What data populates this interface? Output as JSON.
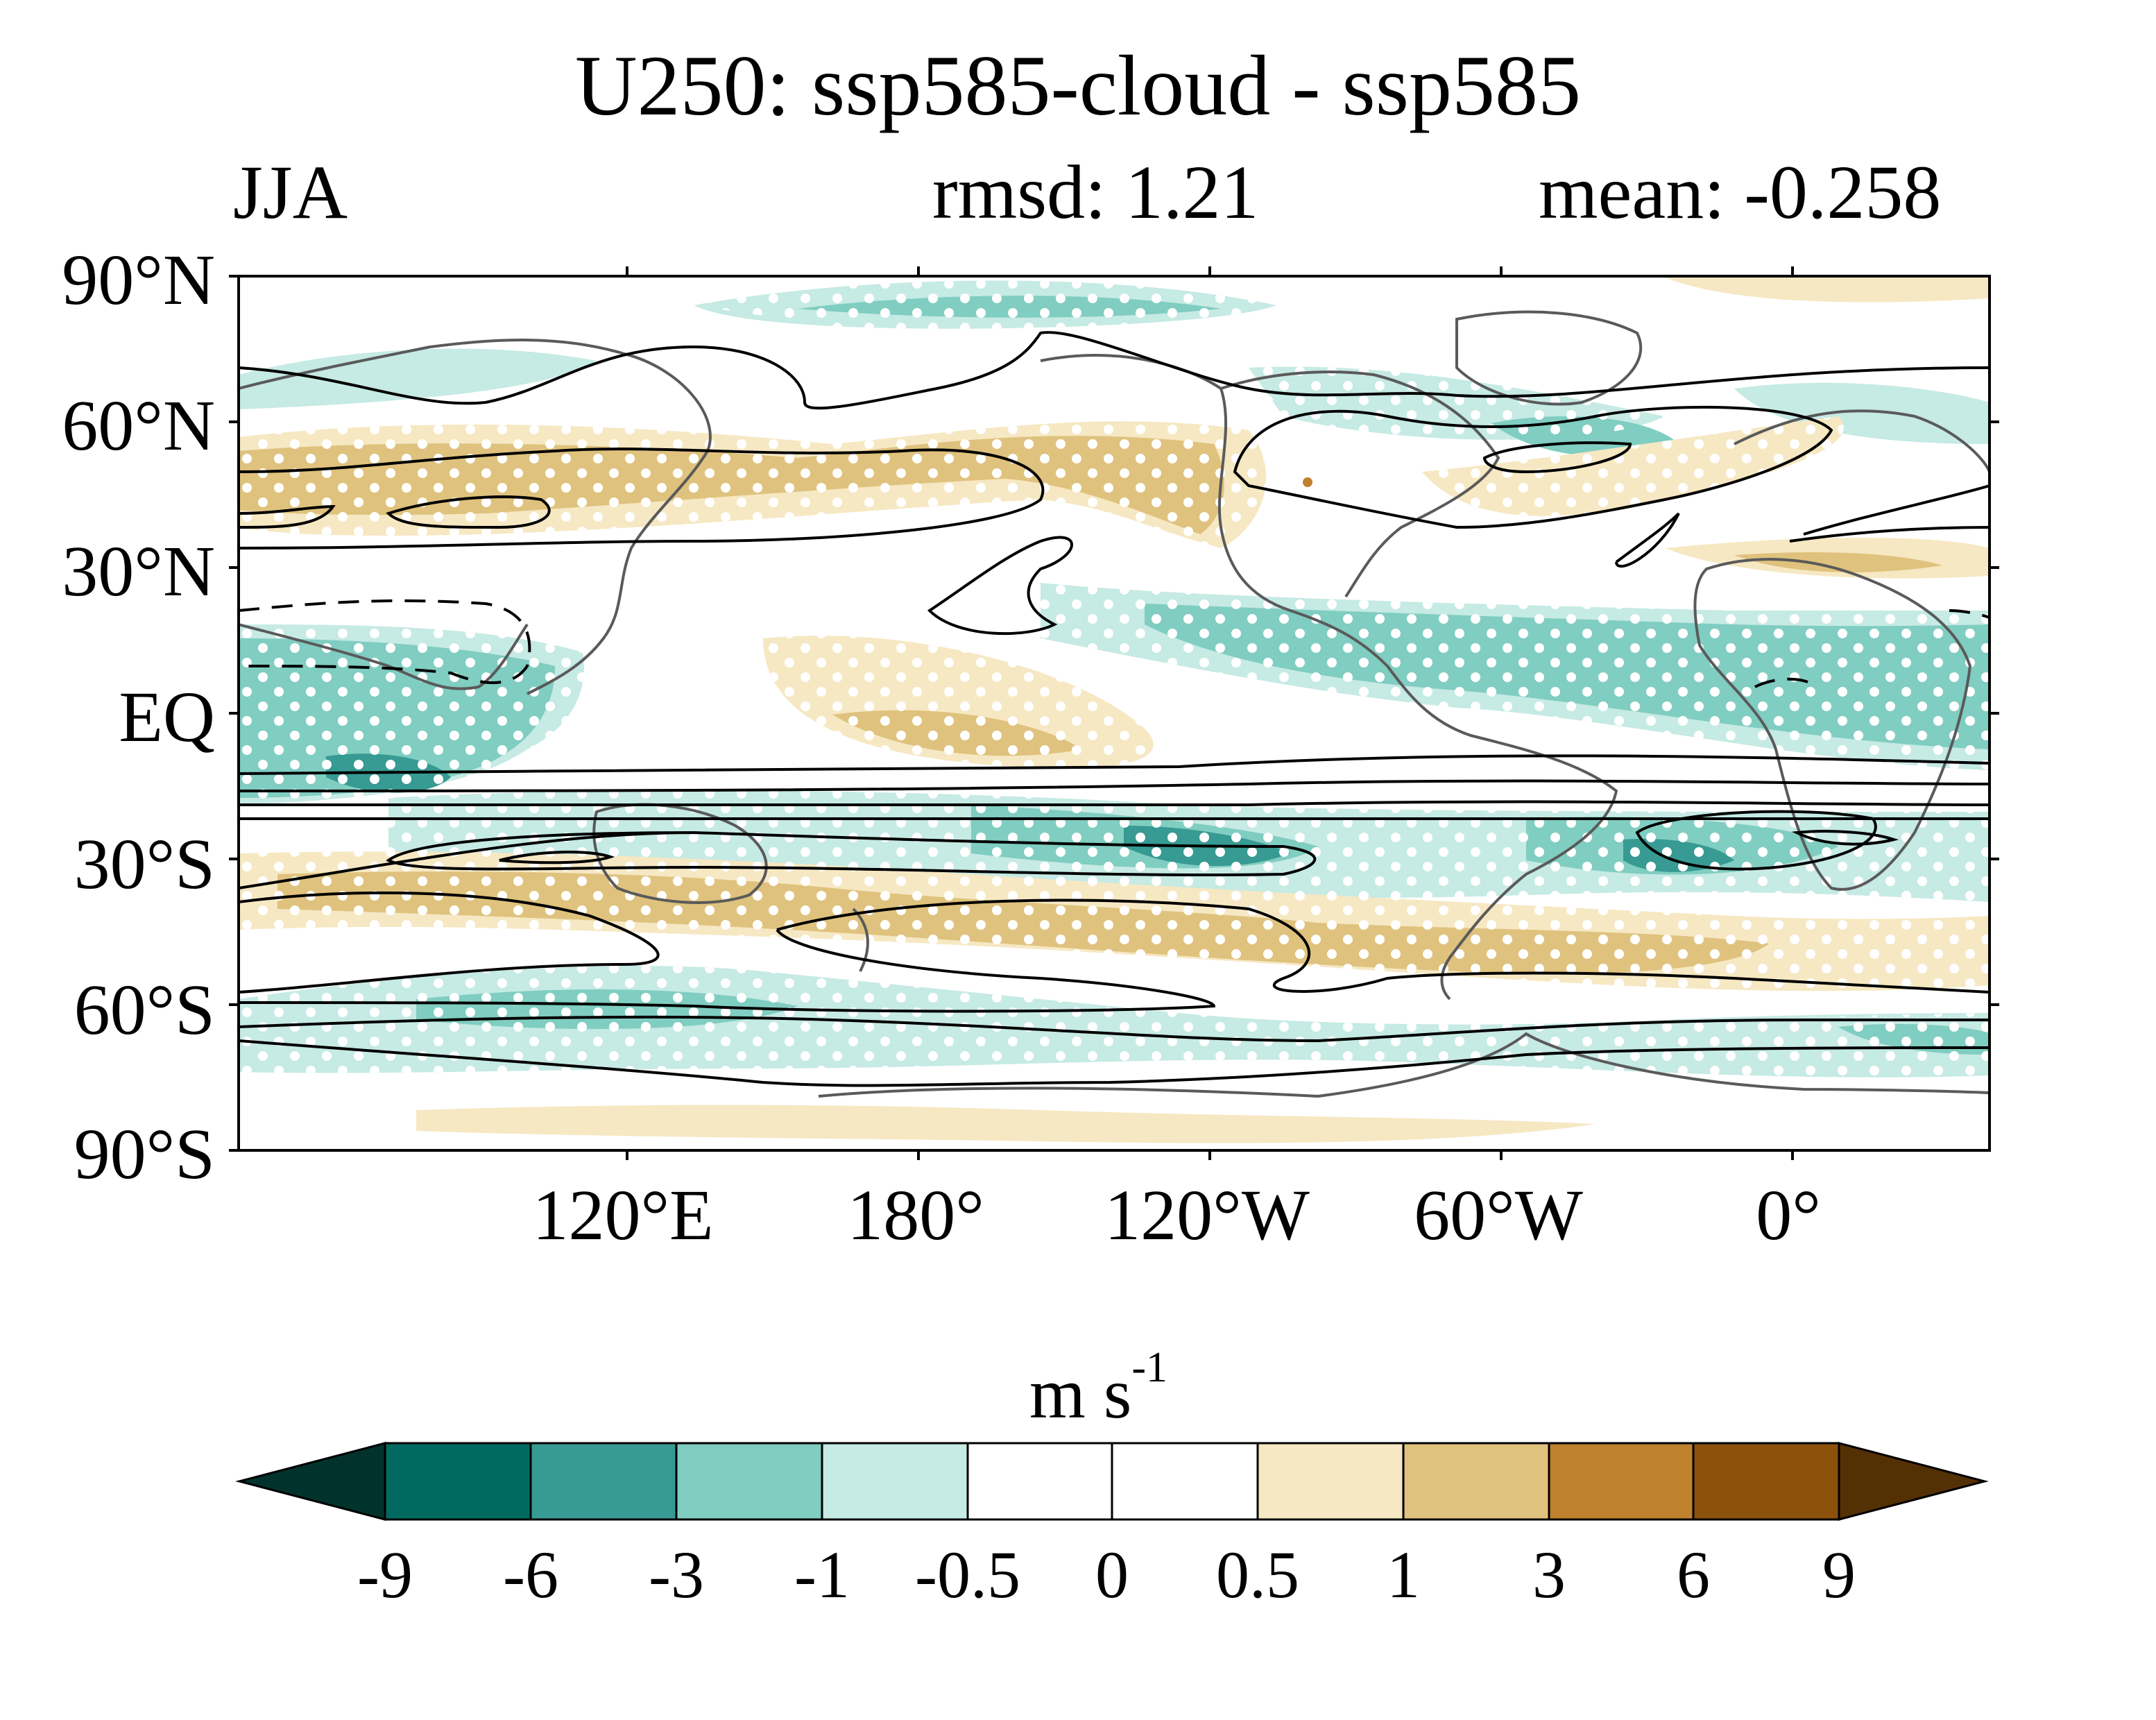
{
  "title": "U250: ssp585-cloud - ssp585",
  "season": "JJA",
  "rmsd_label": "rmsd: 1.21",
  "mean_label": "mean: -0.258",
  "lat_labels": [
    "90°N",
    "60°N",
    "30°N",
    "EQ",
    "30°S",
    "60°S",
    "90°S"
  ],
  "lon_labels": [
    "120°E",
    "180°",
    "120°W",
    "60°W",
    "0°"
  ],
  "colorbar": {
    "units_base": "m s",
    "units_exp": "-1",
    "tick_labels": [
      "-9",
      "-6",
      "-3",
      "-1",
      "-0.5",
      "0",
      "0.5",
      "1",
      "3",
      "6",
      "9"
    ],
    "colors": [
      "#01332c",
      "#016a60",
      "#379a93",
      "#80cdc1",
      "#c6eae4",
      "#ffffff",
      "#ffffff",
      "#f6e8c3",
      "#dfc27d",
      "#bf812d",
      "#8c510a",
      "#543005"
    ]
  },
  "map": {
    "lon_range": [
      40,
      400
    ],
    "lat_range": [
      -90,
      90
    ],
    "stippling": "white dots mark significant anomalies",
    "contours": "black lines show climatological zonal wind; dashed = easterly"
  }
}
